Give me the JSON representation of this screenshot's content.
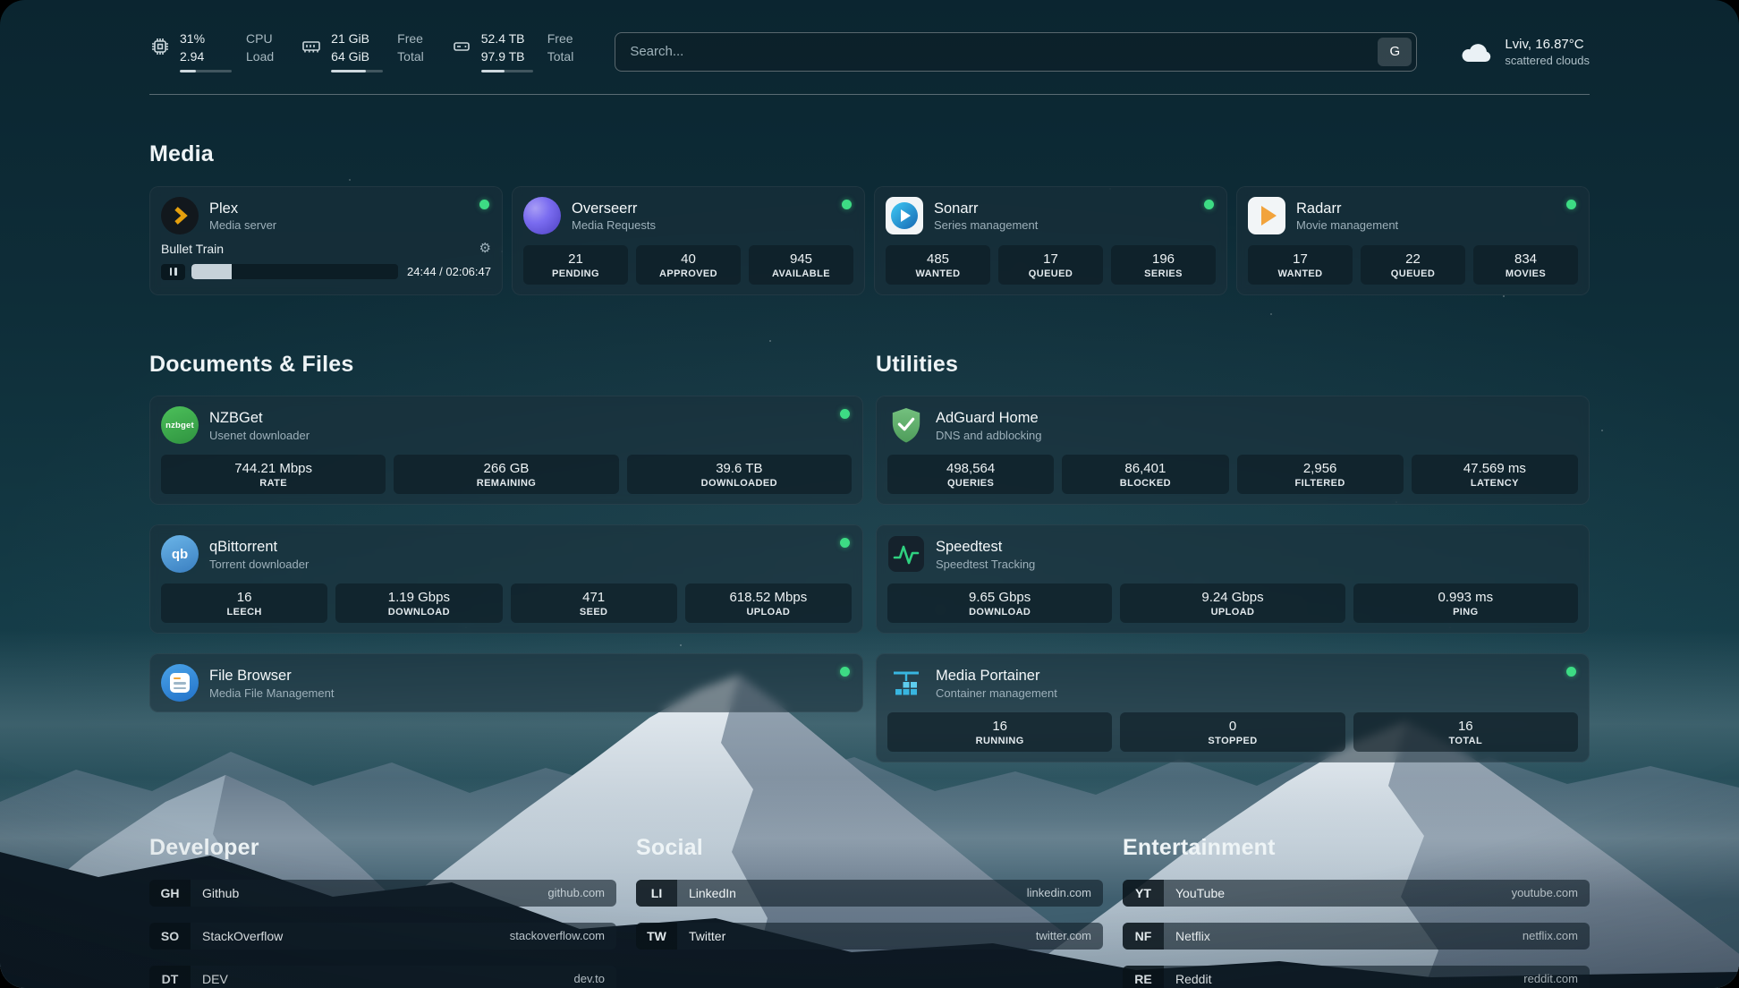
{
  "topbar": {
    "cpu": {
      "value_top": "31%",
      "value_bottom": "2.94",
      "label_top": "CPU",
      "label_bottom": "Load",
      "bar_percent": 31
    },
    "memory": {
      "value_top": "21 GiB",
      "value_bottom": "64 GiB",
      "label_top": "Free",
      "label_bottom": "Total",
      "bar_percent": 67
    },
    "disk": {
      "value_top": "52.4 TB",
      "value_bottom": "97.9 TB",
      "label_top": "Free",
      "label_bottom": "Total",
      "bar_percent": 46
    },
    "search": {
      "placeholder": "Search...",
      "button_label": "G"
    },
    "weather": {
      "location": "Lviv, 16.87°C",
      "condition": "scattered clouds"
    }
  },
  "icons": {
    "gear": "⚙"
  },
  "media": {
    "heading": "Media",
    "plex": {
      "name": "Plex",
      "desc": "Media server",
      "now_playing": "Bullet Train",
      "time": "24:44 / 02:06:47",
      "progress_percent": 19.5
    },
    "overseerr": {
      "name": "Overseerr",
      "desc": "Media Requests",
      "stats": [
        {
          "value": "21",
          "label": "PENDING"
        },
        {
          "value": "40",
          "label": "APPROVED"
        },
        {
          "value": "945",
          "label": "AVAILABLE"
        }
      ]
    },
    "sonarr": {
      "name": "Sonarr",
      "desc": "Series management",
      "stats": [
        {
          "value": "485",
          "label": "WANTED"
        },
        {
          "value": "17",
          "label": "QUEUED"
        },
        {
          "value": "196",
          "label": "SERIES"
        }
      ]
    },
    "radarr": {
      "name": "Radarr",
      "desc": "Movie management",
      "stats": [
        {
          "value": "17",
          "label": "WANTED"
        },
        {
          "value": "22",
          "label": "QUEUED"
        },
        {
          "value": "834",
          "label": "MOVIES"
        }
      ]
    }
  },
  "documents": {
    "heading": "Documents & Files",
    "nzbget": {
      "name": "NZBGet",
      "desc": "Usenet downloader",
      "icon_text": "nzbget",
      "stats": [
        {
          "value": "744.21 Mbps",
          "label": "RATE"
        },
        {
          "value": "266 GB",
          "label": "REMAINING"
        },
        {
          "value": "39.6 TB",
          "label": "DOWNLOADED"
        }
      ]
    },
    "qbittorrent": {
      "name": "qBittorrent",
      "desc": "Torrent downloader",
      "icon_text": "qb",
      "stats": [
        {
          "value": "16",
          "label": "LEECH"
        },
        {
          "value": "1.19 Gbps",
          "label": "DOWNLOAD"
        },
        {
          "value": "471",
          "label": "SEED"
        },
        {
          "value": "618.52 Mbps",
          "label": "UPLOAD"
        }
      ]
    },
    "filebrowser": {
      "name": "File Browser",
      "desc": "Media File Management"
    }
  },
  "utilities": {
    "heading": "Utilities",
    "adguard": {
      "name": "AdGuard Home",
      "desc": "DNS and adblocking",
      "stats": [
        {
          "value": "498,564",
          "label": "QUERIES"
        },
        {
          "value": "86,401",
          "label": "BLOCKED"
        },
        {
          "value": "2,956",
          "label": "FILTERED"
        },
        {
          "value": "47.569 ms",
          "label": "LATENCY"
        }
      ]
    },
    "speedtest": {
      "name": "Speedtest",
      "desc": "Speedtest Tracking",
      "stats": [
        {
          "value": "9.65 Gbps",
          "label": "DOWNLOAD"
        },
        {
          "value": "9.24 Gbps",
          "label": "UPLOAD"
        },
        {
          "value": "0.993 ms",
          "label": "PING"
        }
      ]
    },
    "portainer": {
      "name": "Media Portainer",
      "desc": "Container management",
      "stats": [
        {
          "value": "16",
          "label": "RUNNING"
        },
        {
          "value": "0",
          "label": "STOPPED"
        },
        {
          "value": "16",
          "label": "TOTAL"
        }
      ]
    }
  },
  "bookmarks": {
    "developer": {
      "heading": "Developer",
      "items": [
        {
          "abbr": "GH",
          "name": "Github",
          "url": "github.com"
        },
        {
          "abbr": "SO",
          "name": "StackOverflow",
          "url": "stackoverflow.com"
        },
        {
          "abbr": "DT",
          "name": "DEV",
          "url": "dev.to"
        }
      ]
    },
    "social": {
      "heading": "Social",
      "items": [
        {
          "abbr": "LI",
          "name": "LinkedIn",
          "url": "linkedin.com"
        },
        {
          "abbr": "TW",
          "name": "Twitter",
          "url": "twitter.com"
        }
      ]
    },
    "entertainment": {
      "heading": "Entertainment",
      "items": [
        {
          "abbr": "YT",
          "name": "YouTube",
          "url": "youtube.com"
        },
        {
          "abbr": "NF",
          "name": "Netflix",
          "url": "netflix.com"
        },
        {
          "abbr": "RE",
          "name": "Reddit",
          "url": "reddit.com"
        }
      ]
    }
  },
  "colors": {
    "status_online": "#3ddc84",
    "plex_amber": "#e5a00d",
    "sonarr_blue": "#2193d1",
    "radarr_amber": "#f2a33c",
    "nzbget_green": "#3db24f",
    "qbittorrent_blue": "#4f9edd",
    "adguard_green": "#67b279",
    "speedtest_green": "#2fd180",
    "filebrowser_blue": "#3184c4",
    "portainer_blue": "#2fa8d5",
    "overseerr_purple": "#6357d9"
  }
}
